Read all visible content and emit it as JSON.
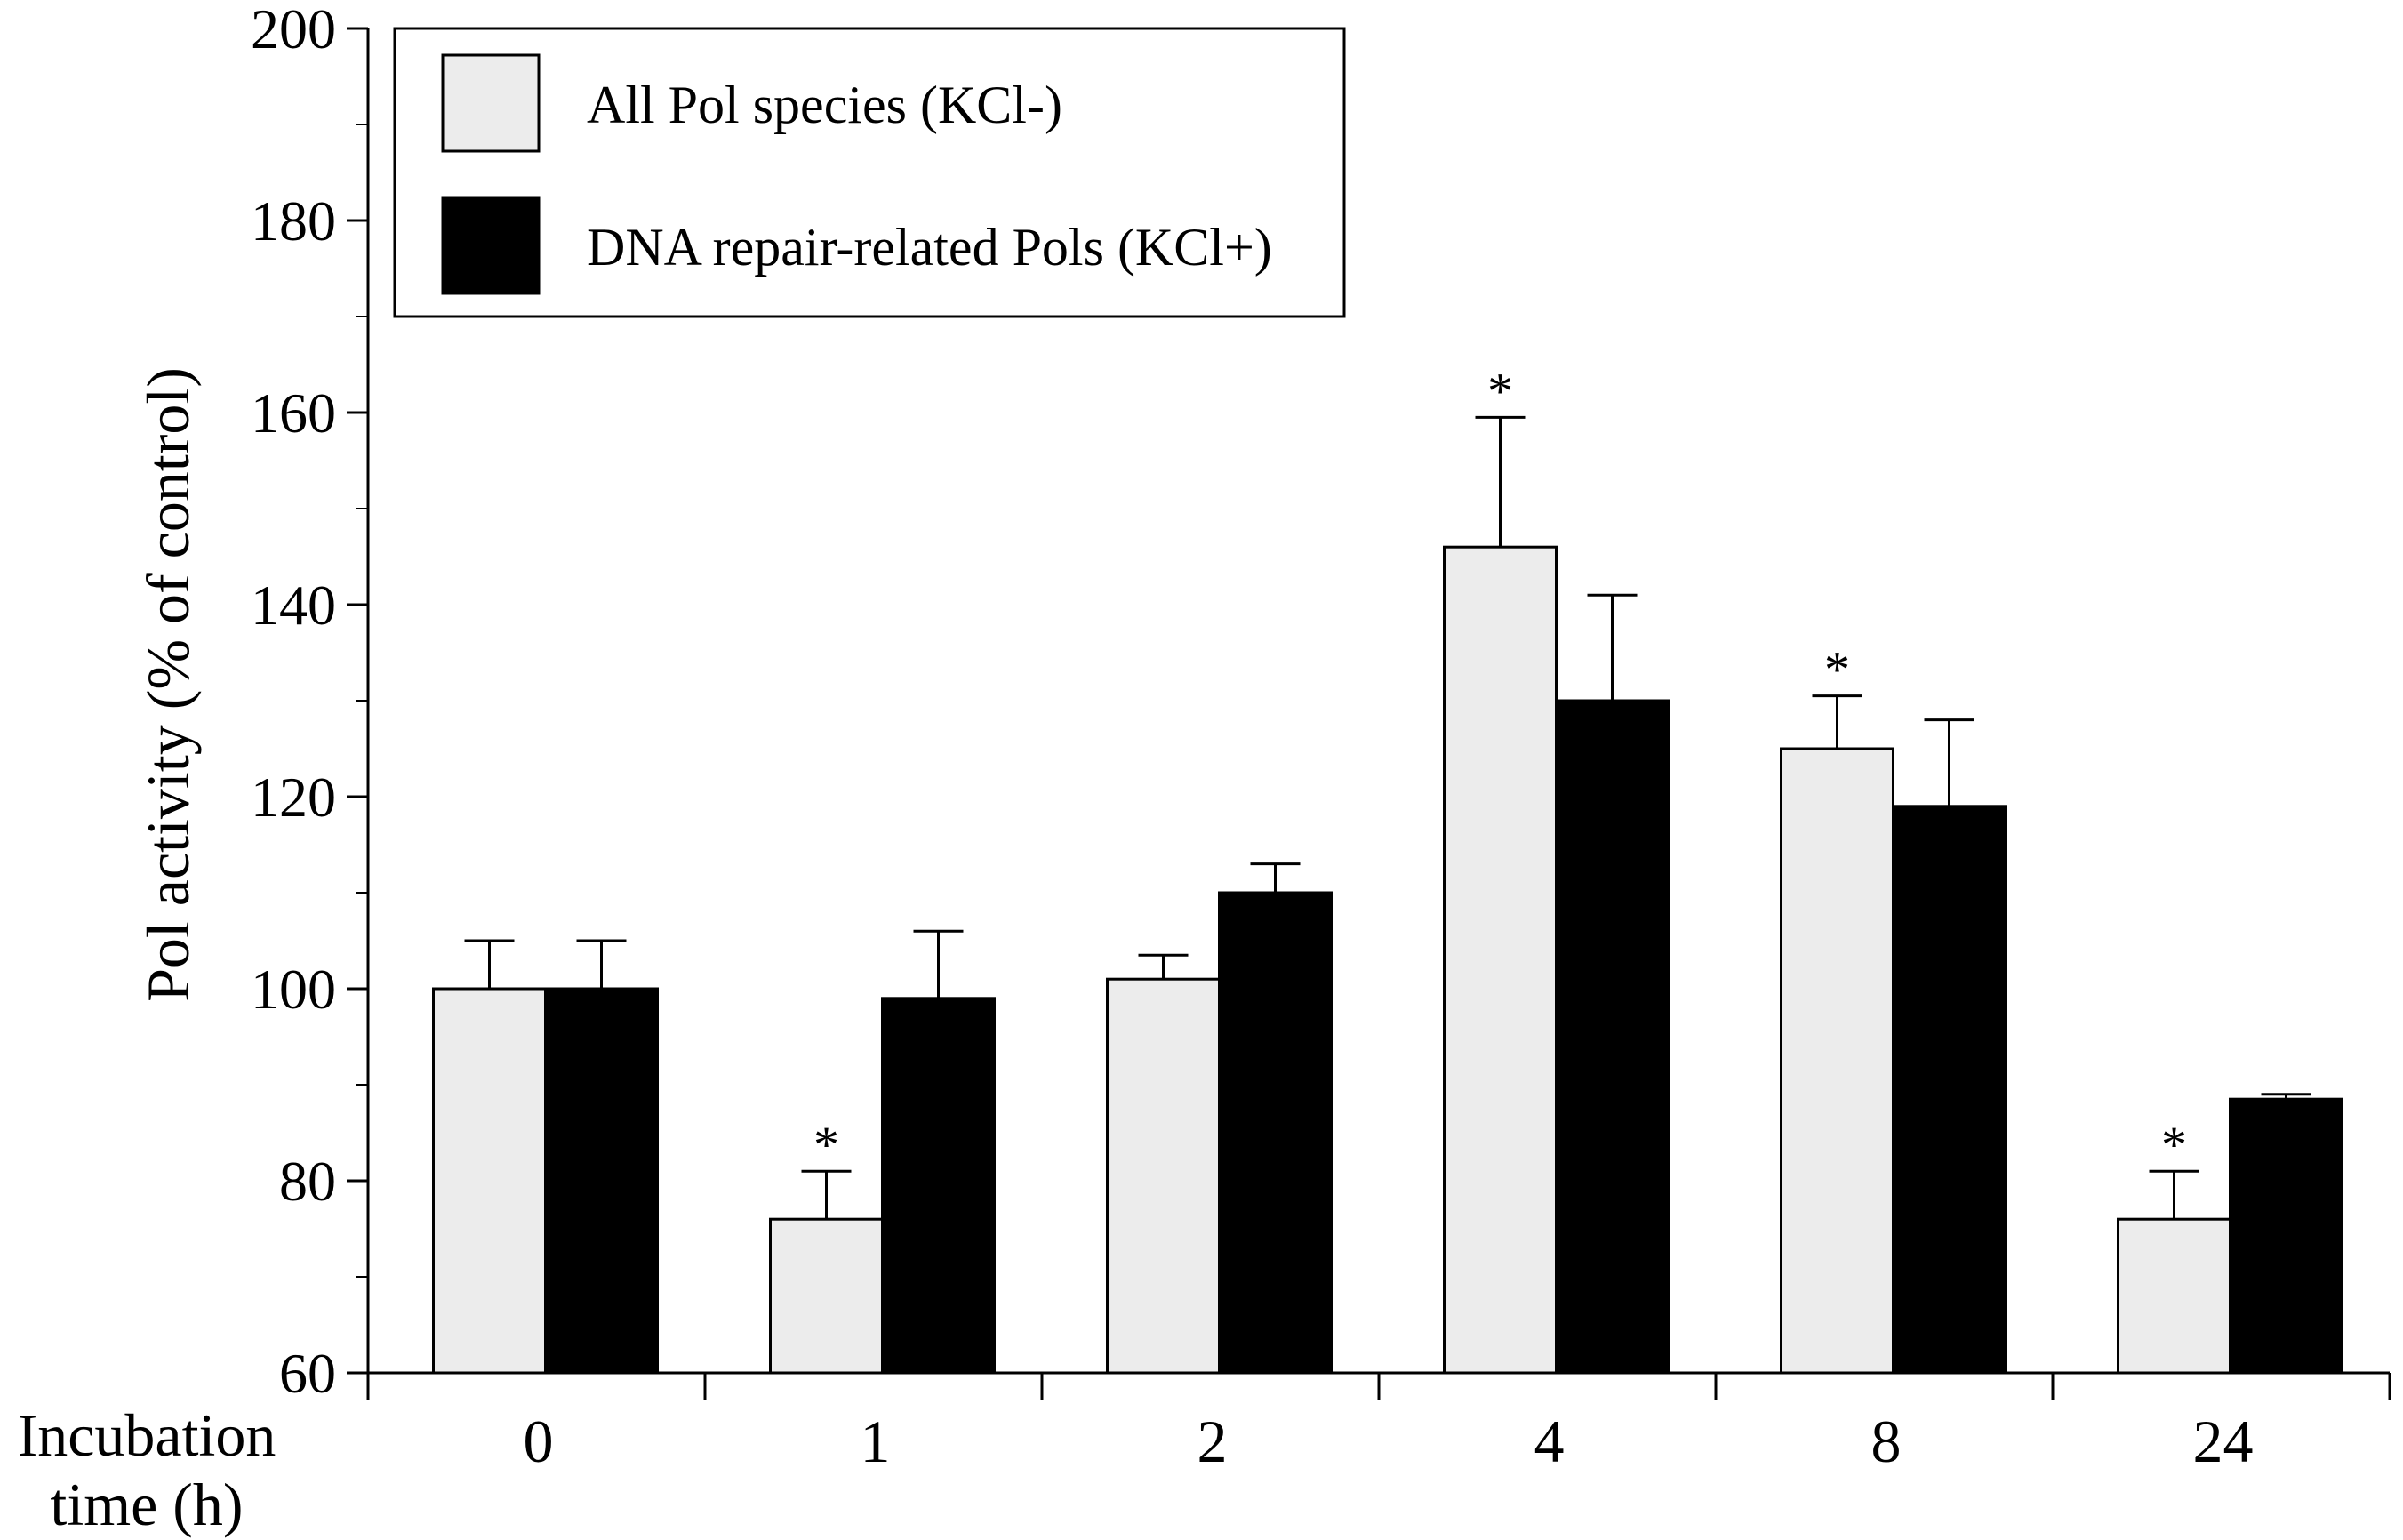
{
  "chart_data": {
    "type": "bar",
    "title": "",
    "xlabel": "Incubation\ntime (h)",
    "ylabel": "Pol activity (% of control)",
    "ylim": [
      60,
      200
    ],
    "yticks": [
      "60",
      "80",
      "100",
      "120",
      "140",
      "160",
      "180",
      "200"
    ],
    "categories": [
      "0",
      "1",
      "2",
      "4",
      "8",
      "24"
    ],
    "legend_position": "top-left",
    "series": [
      {
        "name": "All Pol species (KCl-)",
        "color": "#ececec",
        "values": [
          100,
          76,
          101,
          146,
          125,
          76
        ],
        "errors": [
          5,
          5,
          2.5,
          13.5,
          5.5,
          5
        ],
        "significant": [
          "",
          "*",
          "",
          "*",
          "*",
          "*"
        ]
      },
      {
        "name": "DNA repair-related Pols (KCl+)",
        "color": "#000000",
        "values": [
          100,
          99,
          110,
          130,
          119,
          88.5
        ],
        "errors": [
          5,
          7,
          3,
          11,
          9,
          0.5
        ],
        "significant": [
          "",
          "",
          "",
          "",
          "",
          ""
        ]
      }
    ],
    "x_axis_title_lines": [
      "Incubation",
      "time (h)"
    ]
  }
}
